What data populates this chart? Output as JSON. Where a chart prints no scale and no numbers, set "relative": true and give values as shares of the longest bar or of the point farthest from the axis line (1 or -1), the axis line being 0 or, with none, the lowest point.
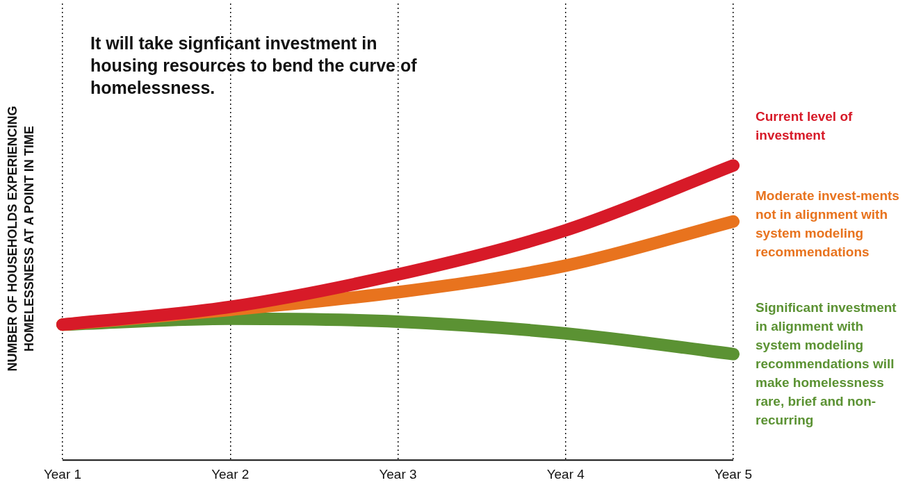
{
  "chart_data": {
    "type": "line",
    "relative": true,
    "title": "It will take signficant investment in housing resources to bend the curve of homelessness.",
    "ylabel": "NUMBER OF HOUSEHOLDS EXPERIENCING HOMELESSNESS AT A POINT IN TIME",
    "categories": [
      "Year 1",
      "Year 2",
      "Year 3",
      "Year 4",
      "Year 5"
    ],
    "grid": "x",
    "legend": false,
    "marker": "none",
    "line_style": "solid",
    "series": [
      {
        "name": "Current level of investment",
        "color": "#d71a28",
        "values": [
          0.46,
          0.52,
          0.63,
          0.78,
          1.0
        ]
      },
      {
        "name": "Moderate invest-ments not in alignment with system modeling recommendations",
        "color": "#e8731e",
        "values": [
          0.46,
          0.51,
          0.57,
          0.66,
          0.81
        ]
      },
      {
        "name": "Significant investment in alignment with system modeling recommendations will make homelessness rare, brief and non-recurring",
        "color": "#5b9233",
        "values": [
          0.46,
          0.48,
          0.47,
          0.43,
          0.36
        ]
      }
    ]
  }
}
